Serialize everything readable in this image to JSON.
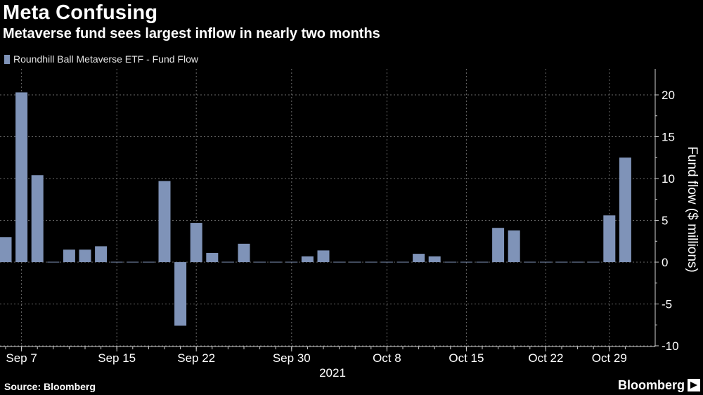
{
  "header": {
    "title": "Meta Confusing",
    "subtitle": "Metaverse fund sees largest inflow in nearly two months"
  },
  "footer": {
    "source": "Source: Bloomberg",
    "brand": "Bloomberg"
  },
  "colors": {
    "background": "#000000",
    "bar": "#7f93b8",
    "grid": "#6a6a6a",
    "text": "#ffffff"
  },
  "chart_data": {
    "type": "bar",
    "title": "Meta Confusing",
    "subtitle": "Metaverse fund sees largest inflow in nearly two months",
    "legend": [
      "Roundhill Ball Metaverse ETF - Fund Flow"
    ],
    "legend_position": "top-left",
    "ylabel": "Fund flow ($ millions)",
    "ylim": [
      -10,
      22
    ],
    "yticks": [
      20,
      15,
      10,
      5,
      0,
      -5,
      -10
    ],
    "grid": true,
    "x_year_label": "2021",
    "xtick_labels": [
      "Sep 7",
      "Sep 15",
      "Sep 22",
      "Sep 30",
      "Oct 8",
      "Oct 15",
      "Oct 22",
      "Oct 29"
    ],
    "xtick_index": [
      1,
      7,
      12,
      18,
      24,
      29,
      34,
      38
    ],
    "series": [
      {
        "name": "Roundhill Ball Metaverse ETF - Fund Flow",
        "values": [
          3.0,
          20.3,
          10.4,
          0,
          1.5,
          1.5,
          1.9,
          0,
          0,
          0,
          9.7,
          -7.6,
          4.7,
          1.1,
          0,
          2.2,
          0,
          0,
          0,
          0.7,
          1.4,
          0,
          0,
          0,
          0,
          0,
          1.0,
          0.7,
          0,
          0,
          0,
          4.1,
          3.8,
          0,
          0,
          0,
          0,
          0,
          5.6,
          12.5
        ]
      }
    ]
  }
}
